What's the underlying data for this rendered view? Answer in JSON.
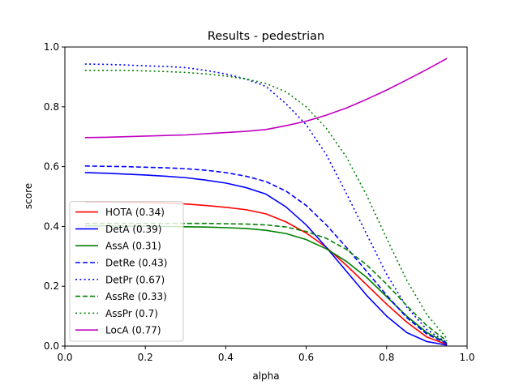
{
  "chart_data": {
    "type": "line",
    "title": "Results - pedestrian",
    "xlabel": "alpha",
    "ylabel": "score",
    "xlim": [
      0.0,
      1.0
    ],
    "ylim": [
      0.0,
      1.0
    ],
    "xticks": [
      "0.0",
      "0.2",
      "0.4",
      "0.6",
      "0.8",
      "1.0"
    ],
    "yticks": [
      "0.0",
      "0.2",
      "0.4",
      "0.6",
      "0.8",
      "1.0"
    ],
    "grid": false,
    "legend_position": "lower-left",
    "x": [
      0.05,
      0.1,
      0.15,
      0.2,
      0.25,
      0.3,
      0.35,
      0.4,
      0.45,
      0.5,
      0.55,
      0.6,
      0.65,
      0.7,
      0.75,
      0.8,
      0.85,
      0.9,
      0.95
    ],
    "series": [
      {
        "name": "HOTA (0.34)",
        "color": "#ff0000",
        "style": "solid",
        "values": [
          0.482,
          0.482,
          0.481,
          0.48,
          0.478,
          0.475,
          0.47,
          0.464,
          0.456,
          0.442,
          0.415,
          0.378,
          0.33,
          0.27,
          0.205,
          0.14,
          0.08,
          0.03,
          0.005
        ]
      },
      {
        "name": "DetA (0.39)",
        "color": "#0000ff",
        "style": "solid",
        "values": [
          0.58,
          0.578,
          0.575,
          0.572,
          0.568,
          0.563,
          0.555,
          0.545,
          0.53,
          0.508,
          0.465,
          0.405,
          0.33,
          0.25,
          0.17,
          0.1,
          0.045,
          0.015,
          0.003
        ]
      },
      {
        "name": "AssA (0.31)",
        "color": "#008000",
        "style": "solid",
        "values": [
          0.402,
          0.402,
          0.401,
          0.401,
          0.4,
          0.399,
          0.398,
          0.396,
          0.393,
          0.387,
          0.376,
          0.356,
          0.325,
          0.283,
          0.23,
          0.165,
          0.1,
          0.045,
          0.01
        ]
      },
      {
        "name": "DetRe (0.43)",
        "color": "#0000ff",
        "style": "dashed",
        "values": [
          0.602,
          0.601,
          0.6,
          0.598,
          0.596,
          0.593,
          0.588,
          0.58,
          0.568,
          0.55,
          0.518,
          0.47,
          0.405,
          0.33,
          0.25,
          0.17,
          0.095,
          0.04,
          0.008
        ]
      },
      {
        "name": "DetPr (0.67)",
        "color": "#0000ff",
        "style": "dotted",
        "values": [
          0.943,
          0.942,
          0.94,
          0.937,
          0.935,
          0.931,
          0.922,
          0.91,
          0.893,
          0.868,
          0.81,
          0.74,
          0.64,
          0.51,
          0.375,
          0.24,
          0.13,
          0.055,
          0.012
        ]
      },
      {
        "name": "AssRe (0.33)",
        "color": "#008000",
        "style": "dashed",
        "values": [
          0.41,
          0.41,
          0.41,
          0.41,
          0.41,
          0.41,
          0.41,
          0.409,
          0.408,
          0.405,
          0.398,
          0.383,
          0.36,
          0.323,
          0.272,
          0.207,
          0.135,
          0.068,
          0.017
        ]
      },
      {
        "name": "AssPr (0.7)",
        "color": "#008000",
        "style": "dotted",
        "values": [
          0.922,
          0.922,
          0.922,
          0.92,
          0.918,
          0.915,
          0.91,
          0.903,
          0.893,
          0.878,
          0.85,
          0.8,
          0.728,
          0.632,
          0.505,
          0.36,
          0.22,
          0.105,
          0.025
        ]
      },
      {
        "name": "LocA (0.77)",
        "color": "#bf00bf",
        "style": "solid",
        "values": [
          0.697,
          0.698,
          0.7,
          0.702,
          0.704,
          0.706,
          0.71,
          0.714,
          0.718,
          0.724,
          0.737,
          0.752,
          0.772,
          0.796,
          0.825,
          0.856,
          0.89,
          0.925,
          0.962
        ]
      }
    ]
  }
}
